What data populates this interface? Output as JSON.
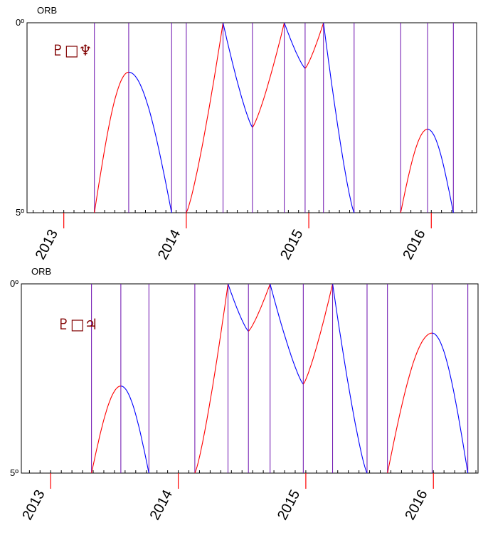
{
  "chart_data": [
    {
      "type": "line",
      "ylabel": "ORB",
      "ymax_label": "0º",
      "ymin_label": "5º",
      "ylim": [
        0,
        5
      ],
      "y_inverted": true,
      "xlim": [
        2012.7,
        2016.37
      ],
      "x_ticks": [
        {
          "value": 2013,
          "label": "2013"
        },
        {
          "value": 2014,
          "label": "2014"
        },
        {
          "value": 2015,
          "label": "2015"
        },
        {
          "value": 2016,
          "label": "2016"
        }
      ],
      "glyph_label": "♇□♆",
      "glyph_color": "#800000",
      "series_colors": {
        "applying": "#ff0000",
        "separating": "#0000ff",
        "marker": "#6a0dad"
      },
      "markers": [
        2013.25,
        2013.53,
        2013.88,
        2014.0,
        2014.3,
        2014.54,
        2014.8,
        2014.97,
        2015.12,
        2015.37,
        2015.75,
        2015.97,
        2016.18
      ],
      "points": [
        {
          "x": 2013.25,
          "y": 5.0
        },
        {
          "x": 2013.53,
          "y": 1.3
        },
        {
          "x": 2013.88,
          "y": 5.0
        },
        {
          "x": 2014.0,
          "y": 5.0
        },
        {
          "x": 2014.3,
          "y": 0.0
        },
        {
          "x": 2014.54,
          "y": 2.75
        },
        {
          "x": 2014.8,
          "y": 0.0
        },
        {
          "x": 2014.97,
          "y": 1.2
        },
        {
          "x": 2015.12,
          "y": 0.0
        },
        {
          "x": 2015.37,
          "y": 5.0
        },
        {
          "x": 2015.75,
          "y": 5.0
        },
        {
          "x": 2015.97,
          "y": 2.8
        },
        {
          "x": 2016.18,
          "y": 5.0
        }
      ]
    },
    {
      "type": "line",
      "ylabel": "ORB",
      "ymax_label": "0º",
      "ymin_label": "5º",
      "ylim": [
        0,
        5
      ],
      "y_inverted": true,
      "xlim": [
        2012.77,
        2016.35
      ],
      "x_ticks": [
        {
          "value": 2013,
          "label": "2013"
        },
        {
          "value": 2014,
          "label": "2014"
        },
        {
          "value": 2015,
          "label": "2015"
        },
        {
          "value": 2016,
          "label": "2016"
        }
      ],
      "glyph_label": "♇□♃",
      "glyph_color": "#800000",
      "series_colors": {
        "applying": "#ff0000",
        "separating": "#0000ff",
        "marker": "#6a0dad"
      },
      "markers": [
        2013.32,
        2013.55,
        2013.77,
        2014.13,
        2014.39,
        2014.55,
        2014.72,
        2014.98,
        2015.21,
        2015.48,
        2015.64,
        2015.99,
        2016.27
      ],
      "points": [
        {
          "x": 2013.32,
          "y": 5.0
        },
        {
          "x": 2013.55,
          "y": 2.7
        },
        {
          "x": 2013.77,
          "y": 5.0
        },
        {
          "x": 2014.13,
          "y": 5.0
        },
        {
          "x": 2014.39,
          "y": 0.0
        },
        {
          "x": 2014.55,
          "y": 1.25
        },
        {
          "x": 2014.72,
          "y": 0.0
        },
        {
          "x": 2014.98,
          "y": 2.65
        },
        {
          "x": 2015.21,
          "y": 0.0
        },
        {
          "x": 2015.48,
          "y": 5.0
        },
        {
          "x": 2015.64,
          "y": 5.0
        },
        {
          "x": 2015.99,
          "y": 1.3
        },
        {
          "x": 2016.27,
          "y": 5.0
        }
      ]
    }
  ]
}
